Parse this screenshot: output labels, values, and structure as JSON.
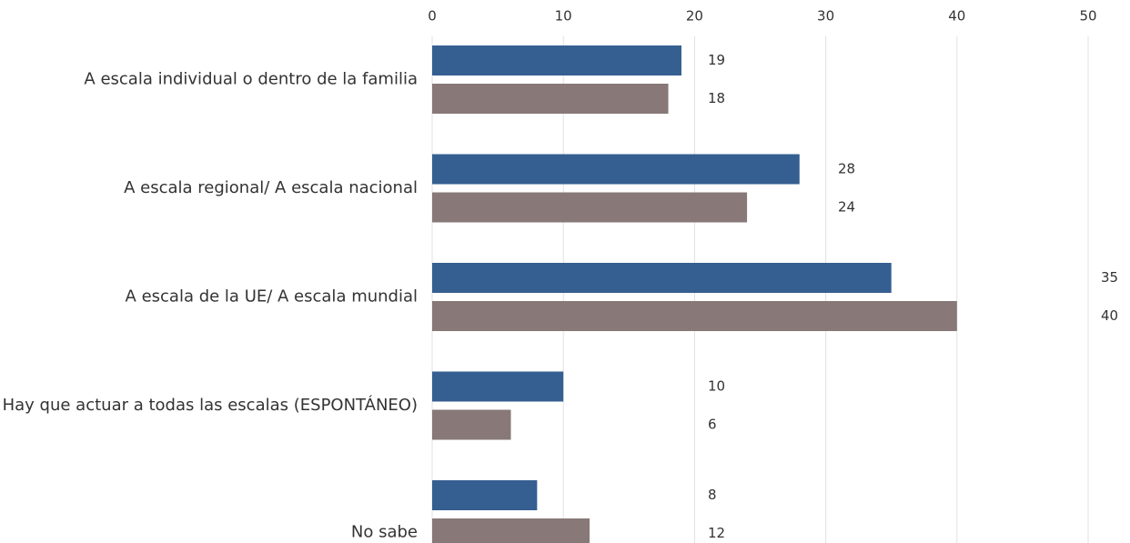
{
  "chart_data": {
    "type": "bar",
    "orientation": "horizontal",
    "categories": [
      "A escala individual o dentro de la familia",
      "A escala regional/ A escala nacional",
      "A escala de la UE/ A escala mundial",
      "Hay que actuar a todas las escalas (ESPONTÁNEO)",
      "No sabe"
    ],
    "series": [
      {
        "color": "#365f91",
        "values": [
          19,
          28,
          35,
          10,
          8
        ]
      },
      {
        "color": "#887878",
        "values": [
          18,
          24,
          40,
          6,
          12
        ]
      }
    ],
    "xlim": [
      0,
      50
    ],
    "xticks": [
      0,
      10,
      20,
      30,
      40,
      50
    ],
    "grid": true
  }
}
